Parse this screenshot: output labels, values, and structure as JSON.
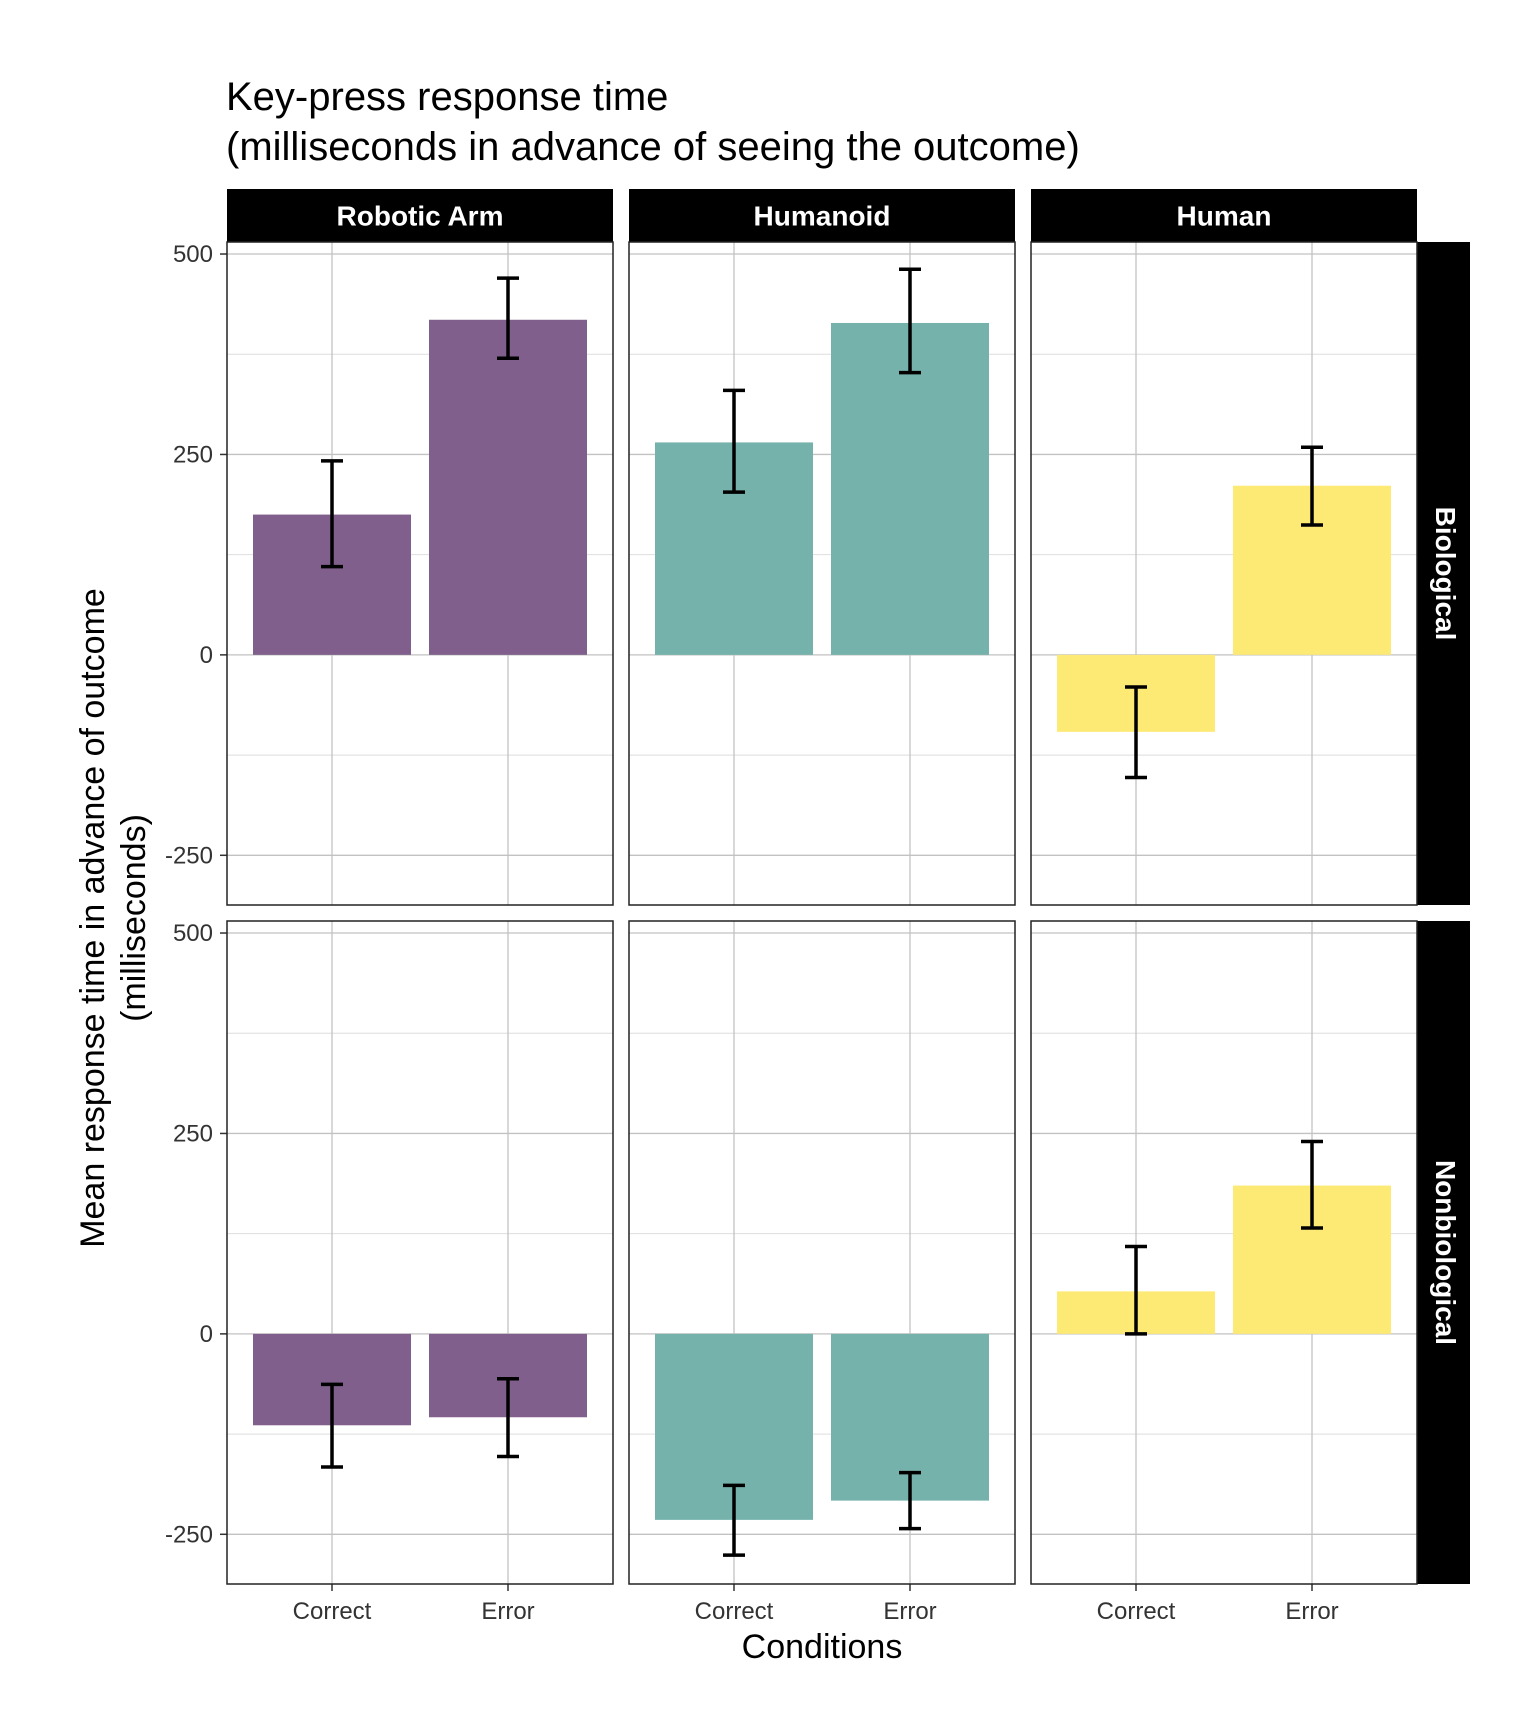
{
  "chart_data": {
    "type": "bar",
    "title_lines": [
      "Key-press response time",
      "(milliseconds in advance of seeing the outcome)"
    ],
    "xlabel": "Conditions",
    "ylabel_lines": [
      "Mean response time in advance of outcome",
      "(milliseconds)"
    ],
    "categories": [
      "Correct",
      "Error"
    ],
    "ylim": [
      -312,
      515
    ],
    "yticks": [
      500,
      250,
      0,
      -250
    ],
    "ytick_labels": [
      "500",
      "250",
      "0",
      "-250"
    ],
    "grid": true,
    "facet_columns": [
      "Robotic Arm",
      "Humanoid",
      "Human"
    ],
    "facet_rows": [
      "Biological",
      "Nonbiological"
    ],
    "colors": {
      "Robotic Arm": "#805f8c",
      "Humanoid": "#76b2ac",
      "Human": "#fdea74",
      "strip": "#000000",
      "strip_text": "#ffffff",
      "error_bar": "#000000"
    },
    "panels": [
      {
        "row": "Biological",
        "column": "Robotic Arm",
        "values": [
          175,
          418
        ],
        "err_low": [
          110,
          370
        ],
        "err_high": [
          242,
          470
        ]
      },
      {
        "row": "Biological",
        "column": "Humanoid",
        "values": [
          265,
          414
        ],
        "err_low": [
          203,
          352
        ],
        "err_high": [
          330,
          481
        ]
      },
      {
        "row": "Biological",
        "column": "Human",
        "values": [
          -96,
          211
        ],
        "err_low": [
          -153,
          162
        ],
        "err_high": [
          -40,
          259
        ]
      },
      {
        "row": "Nonbiological",
        "column": "Robotic Arm",
        "values": [
          -114,
          -104
        ],
        "err_low": [
          -166,
          -153
        ],
        "err_high": [
          -63,
          -56
        ]
      },
      {
        "row": "Nonbiological",
        "column": "Humanoid",
        "values": [
          -232,
          -208
        ],
        "err_low": [
          -276,
          -243
        ],
        "err_high": [
          -189,
          -173
        ]
      },
      {
        "row": "Nonbiological",
        "column": "Human",
        "values": [
          53,
          185
        ],
        "err_low": [
          0,
          132
        ],
        "err_high": [
          109,
          240
        ]
      }
    ]
  }
}
